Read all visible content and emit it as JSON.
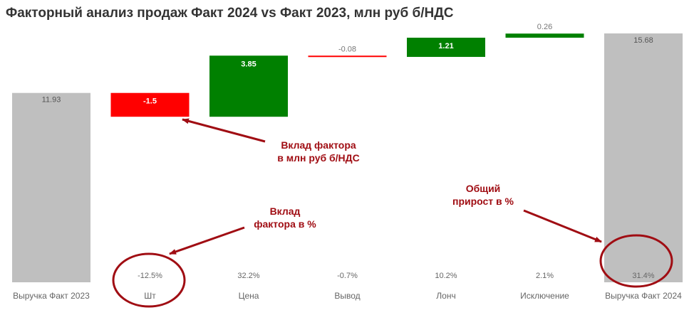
{
  "chart_data": {
    "type": "waterfall",
    "title": "Факторный анализ продаж Факт 2024 vs Факт 2023, млн руб б/НДС",
    "categories": [
      "Выручка Факт 2023",
      "Шт",
      "Цена",
      "Вывод",
      "Лонч",
      "Исключение",
      "Выручка Факт 2024"
    ],
    "values": [
      11.93,
      -1.5,
      3.85,
      -0.08,
      1.21,
      0.26,
      15.68
    ],
    "value_labels": [
      "11.93",
      "-1.5",
      "3.85",
      "-0.08",
      "1.21",
      "0.26",
      "15.68"
    ],
    "percent_labels": [
      "",
      "-12.5%",
      "32.2%",
      "-0.7%",
      "10.2%",
      "2.1%",
      "31.4%"
    ],
    "kinds": [
      "total",
      "delta",
      "delta",
      "delta",
      "delta",
      "delta",
      "total"
    ],
    "ylim": [
      0,
      15.68
    ],
    "colors": {
      "total": "#bfbfbf",
      "increase": "#008000",
      "decrease": "#ff0000",
      "annotation": "#a00d13"
    }
  },
  "annotations": {
    "factor_contribution_mln": "Вклад фактора\nв млн руб б/НДС",
    "factor_contribution_pct": "Вклад\nфактора в %",
    "total_growth_pct": "Общий\nприрост в %"
  }
}
